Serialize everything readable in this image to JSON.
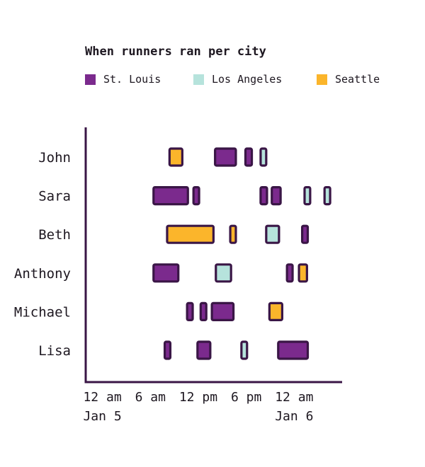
{
  "chart_data": {
    "type": "gantt",
    "title": "When runners ran per city",
    "legend": [
      {
        "name": "St. Louis",
        "color": "#7b2a8d"
      },
      {
        "name": "Los Angeles",
        "color": "#b6e3dc"
      },
      {
        "name": "Seattle",
        "color": "#fbb52b"
      }
    ],
    "outline_color": "#3a1646",
    "axis_color": "#3a1646",
    "x_range_hours": [
      -2,
      30
    ],
    "x_ticks": [
      {
        "hour": 0,
        "label": "12 am",
        "sublabel": "Jan 5"
      },
      {
        "hour": 6,
        "label": "6 am",
        "sublabel": ""
      },
      {
        "hour": 12,
        "label": "12 pm",
        "sublabel": ""
      },
      {
        "hour": 18,
        "label": "6 pm",
        "sublabel": ""
      },
      {
        "hour": 24,
        "label": "12 am",
        "sublabel": "Jan 6"
      }
    ],
    "rows": [
      {
        "name": "John",
        "runs": [
          {
            "city": "Seattle",
            "start": 8.4,
            "end": 10.0
          },
          {
            "city": "St. Louis",
            "start": 14.1,
            "end": 16.7
          },
          {
            "city": "St. Louis",
            "start": 17.9,
            "end": 18.7
          },
          {
            "city": "Los Angeles",
            "start": 19.8,
            "end": 20.5
          }
        ]
      },
      {
        "name": "Sara",
        "runs": [
          {
            "city": "St. Louis",
            "start": 6.4,
            "end": 10.7
          },
          {
            "city": "St. Louis",
            "start": 11.4,
            "end": 12.1
          },
          {
            "city": "St. Louis",
            "start": 19.8,
            "end": 20.6
          },
          {
            "city": "St. Louis",
            "start": 21.2,
            "end": 22.3
          },
          {
            "city": "Los Angeles",
            "start": 25.3,
            "end": 26.0
          },
          {
            "city": "Los Angeles",
            "start": 27.8,
            "end": 28.5
          }
        ]
      },
      {
        "name": "Beth",
        "runs": [
          {
            "city": "Seattle",
            "start": 8.1,
            "end": 13.9
          },
          {
            "city": "Seattle",
            "start": 16.0,
            "end": 16.7
          },
          {
            "city": "Los Angeles",
            "start": 20.5,
            "end": 22.1
          },
          {
            "city": "St. Louis",
            "start": 25.0,
            "end": 25.7
          }
        ]
      },
      {
        "name": "Anthony",
        "runs": [
          {
            "city": "St. Louis",
            "start": 6.4,
            "end": 9.5
          },
          {
            "city": "Los Angeles",
            "start": 14.2,
            "end": 16.1
          },
          {
            "city": "St. Louis",
            "start": 23.1,
            "end": 23.8
          },
          {
            "city": "Seattle",
            "start": 24.6,
            "end": 25.6
          }
        ]
      },
      {
        "name": "Michael",
        "runs": [
          {
            "city": "St. Louis",
            "start": 10.6,
            "end": 11.3
          },
          {
            "city": "St. Louis",
            "start": 12.3,
            "end": 13.0
          },
          {
            "city": "St. Louis",
            "start": 13.7,
            "end": 16.4
          },
          {
            "city": "Seattle",
            "start": 20.9,
            "end": 22.5
          }
        ]
      },
      {
        "name": "Lisa",
        "runs": [
          {
            "city": "St. Louis",
            "start": 7.8,
            "end": 8.5
          },
          {
            "city": "St. Louis",
            "start": 11.9,
            "end": 13.5
          },
          {
            "city": "Los Angeles",
            "start": 17.4,
            "end": 18.1
          },
          {
            "city": "St. Louis",
            "start": 22.0,
            "end": 25.7
          }
        ]
      }
    ]
  }
}
